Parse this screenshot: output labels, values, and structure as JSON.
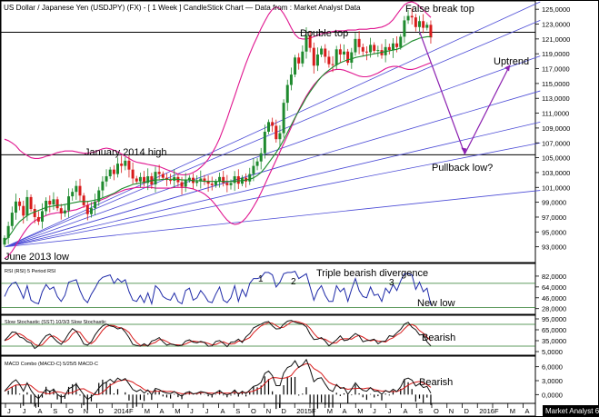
{
  "chart_data": {
    "type": "candlestick",
    "title": "US Dollar / Japanese Yen (USDJPY) (FX) - [ 1 Week ] CandleStick Chart — Data from : Market Analyst Data",
    "watermark": "Market Analyst 6",
    "price_panel": {
      "ylim": [
        91,
        126
      ],
      "y_ticks": [
        "125,0000",
        "123,0000",
        "121,0000",
        "119,0000",
        "117,0000",
        "115,0000",
        "113,0000",
        "111,0000",
        "109,0000",
        "107,0000",
        "105,0000",
        "103,0000",
        "101,0000",
        "99,0000",
        "97,0000",
        "95,0000",
        "93,0000"
      ],
      "horizontal_lines": [
        121.9,
        105.4
      ],
      "annotations": {
        "false_break_top": "False break top",
        "double_top": "Double top",
        "uptrend": "Uptrend",
        "january_2014_high": "January 2014 high",
        "pullback_low": "Pullback low?",
        "june_2013_low": "June 2013 low"
      },
      "close_series": [
        94.2,
        95.8,
        97.6,
        99.1,
        98.5,
        97.2,
        99.7,
        98.1,
        97.0,
        96.4,
        97.8,
        99.2,
        98.7,
        99.4,
        98.2,
        97.5,
        97.9,
        99.8,
        100.4,
        101.2,
        99.9,
        98.6,
        97.4,
        98.2,
        99.1,
        100.6,
        101.8,
        102.5,
        103.4,
        102.8,
        104.2,
        103.9,
        104.6,
        103.4,
        102.2,
        101.8,
        102.4,
        101.6,
        102.5,
        101.4,
        103.1,
        102.8,
        102.3,
        102.0,
        101.9,
        102.4,
        101.7,
        101.1,
        102.0,
        102.3,
        101.6,
        101.8,
        102.2,
        101.9,
        101.5,
        101.3,
        101.8,
        102.4,
        101.6,
        101.3,
        101.6,
        102.5,
        101.5,
        102.3,
        101.8,
        102.8,
        103.9,
        104.5,
        105.6,
        108.5,
        109.8,
        109.3,
        107.5,
        108.3,
        112.4,
        114.8,
        116.2,
        118.5,
        117.7,
        119.3,
        121.5,
        119.8,
        117.4,
        118.9,
        119.7,
        118.6,
        117.6,
        117.5,
        119.6,
        118.9,
        119.3,
        117.8,
        119.2,
        121.0,
        119.9,
        119.3,
        119.2,
        120.2,
        119.4,
        119.5,
        118.8,
        119.9,
        119.5,
        120.4,
        119.9,
        121.3,
        123.5,
        124.1,
        123.9,
        122.6,
        123.4,
        122.5,
        122.9,
        121.2
      ],
      "ma_series": [
        93.8,
        94.3,
        95.0,
        95.8,
        96.4,
        96.8,
        97.2,
        97.5,
        97.7,
        97.9,
        98.1,
        98.3,
        98.4,
        98.5,
        98.6,
        98.6,
        98.7,
        98.8,
        98.9,
        99.0,
        99.1,
        99.1,
        99.1,
        99.2,
        99.3,
        99.4,
        99.6,
        99.8,
        100.0,
        100.2,
        100.5,
        100.8,
        101.0,
        101.2,
        101.4,
        101.5,
        101.6,
        101.7,
        101.8,
        101.9,
        102.0,
        102.0,
        102.1,
        102.1,
        102.1,
        102.1,
        102.1,
        102.0,
        102.0,
        102.0,
        101.9,
        101.9,
        101.9,
        101.8,
        101.8,
        101.8,
        101.8,
        101.8,
        101.8,
        101.8,
        101.8,
        101.8,
        101.9,
        101.9,
        102.0,
        102.1,
        102.3,
        102.6,
        103.0,
        103.6,
        104.3,
        105.0,
        105.7,
        106.5,
        107.4,
        108.4,
        109.4,
        110.4,
        111.3,
        112.2,
        113.1,
        113.9,
        114.6,
        115.3,
        115.9,
        116.4,
        116.8,
        117.2,
        117.5,
        117.8,
        118.0,
        118.2,
        118.3,
        118.5,
        118.6,
        118.7,
        118.8,
        118.9,
        119.0,
        119.1,
        119.2,
        119.3,
        119.4,
        119.5,
        119.6,
        119.8,
        120.1,
        120.4,
        120.7,
        120.9,
        121.1,
        121.2,
        121.3,
        121.3
      ],
      "bb_upper": [
        107.5,
        107.3,
        107.0,
        106.6,
        106.0,
        105.6,
        105.3,
        105.0,
        104.9,
        104.9,
        105.0,
        105.2,
        105.3,
        105.5,
        105.7,
        105.8,
        105.9,
        105.9,
        105.9,
        105.8,
        105.7,
        105.6,
        105.6,
        105.7,
        105.8,
        106.0,
        106.2,
        106.3,
        106.2,
        106.0,
        105.8,
        105.5,
        105.2,
        104.9,
        104.6,
        104.4,
        104.3,
        104.2,
        104.1,
        104.0,
        103.9,
        103.8,
        103.6,
        103.4,
        103.2,
        103.0,
        102.8,
        102.7,
        102.7,
        102.8,
        103.0,
        103.3,
        103.7,
        104.2,
        104.8,
        105.6,
        106.5,
        107.6,
        108.9,
        110.3,
        111.8,
        113.3,
        114.8,
        116.3,
        117.7,
        119.0,
        120.2,
        121.3,
        122.4,
        123.4,
        124.3,
        125.0,
        125.3,
        125.1,
        124.4,
        123.5,
        122.5,
        121.6,
        121.1,
        121.0,
        121.0,
        121.1,
        121.3,
        121.5,
        121.7,
        121.8,
        121.9,
        122.0,
        122.1,
        122.1,
        122.1,
        122.2,
        122.2,
        122.2,
        122.3,
        122.3,
        122.3,
        122.4,
        122.4,
        122.5,
        122.6,
        122.8,
        123.1,
        123.6,
        124.3,
        125.0,
        125.6,
        125.9,
        126.0,
        125.8,
        125.4,
        124.9,
        124.4,
        123.9
      ],
      "bb_lower": [
        91.4,
        91.8,
        92.4,
        93.2,
        94.0,
        94.8,
        95.5,
        96.1,
        96.5,
        96.8,
        97.0,
        97.2,
        97.4,
        97.5,
        97.6,
        97.6,
        97.7,
        97.8,
        97.9,
        98.0,
        98.2,
        98.4,
        98.6,
        98.8,
        99.0,
        99.2,
        99.4,
        99.6,
        99.9,
        100.1,
        100.3,
        100.5,
        100.7,
        100.8,
        100.9,
        101.0,
        101.0,
        101.0,
        101.0,
        101.0,
        100.9,
        100.9,
        100.9,
        100.9,
        100.9,
        101.0,
        101.0,
        101.0,
        101.0,
        100.9,
        100.8,
        100.6,
        100.4,
        100.1,
        99.7,
        99.2,
        98.6,
        97.9,
        97.2,
        96.6,
        96.2,
        96.0,
        96.1,
        96.4,
        96.9,
        97.6,
        98.4,
        99.3,
        100.3,
        101.4,
        102.5,
        103.6,
        104.7,
        105.8,
        106.9,
        108.0,
        109.1,
        110.3,
        111.4,
        112.4,
        113.3,
        114.1,
        114.8,
        115.4,
        115.9,
        116.3,
        116.6,
        116.8,
        116.9,
        116.9,
        116.8,
        116.6,
        116.4,
        116.2,
        116.0,
        115.9,
        115.9,
        116.0,
        116.2,
        116.4,
        116.7,
        117.0,
        117.2,
        117.3,
        117.3,
        117.2,
        117.0,
        116.9,
        116.9,
        117.0,
        117.2,
        117.4,
        117.6,
        117.8
      ],
      "projection": [
        [
          110,
          122.0
        ],
        [
          122,
          105.5
        ],
        [
          134,
          117.5
        ]
      ]
    },
    "rsi_panel": {
      "label": "RSI (RSI) 5 Period RSI",
      "ylim": [
        20,
        100
      ],
      "y_ticks": [
        "82,0000",
        "64,0000",
        "46,0000",
        "28,0000"
      ],
      "horizontal_lines": [
        70,
        30
      ],
      "annotations": {
        "triple": "Triple bearish divergence",
        "new_low": "New low",
        "d1": "1",
        "d2": "2",
        "d3": "3"
      },
      "values": [
        48,
        62,
        70,
        72,
        60,
        45,
        66,
        42,
        38,
        36,
        56,
        68,
        60,
        64,
        48,
        40,
        50,
        72,
        74,
        76,
        58,
        44,
        38,
        52,
        62,
        74,
        80,
        82,
        84,
        70,
        78,
        72,
        76,
        56,
        42,
        40,
        50,
        38,
        54,
        36,
        66,
        60,
        48,
        44,
        42,
        54,
        40,
        36,
        58,
        62,
        42,
        46,
        58,
        50,
        40,
        38,
        52,
        64,
        42,
        38,
        46,
        66,
        40,
        60,
        48,
        70,
        78,
        78,
        80,
        88,
        88,
        84,
        64,
        72,
        86,
        88,
        88,
        90,
        78,
        82,
        86,
        64,
        42,
        58,
        66,
        50,
        40,
        40,
        66,
        56,
        62,
        40,
        60,
        78,
        58,
        48,
        46,
        64,
        50,
        52,
        40,
        62,
        54,
        68,
        58,
        74,
        86,
        86,
        84,
        60,
        72,
        56,
        62,
        34
      ]
    },
    "stoch_panel": {
      "label": "Slow Stochastic (SST) 10/3/3 Slow Stochastic",
      "ylim": [
        0,
        100
      ],
      "y_ticks": [
        "95,0000",
        "65,0000",
        "35,0000",
        "5,0000"
      ],
      "horizontal_lines": [
        80,
        20
      ],
      "annotation": "Bearish"
    },
    "macd_panel": {
      "label": "MACD Combo (MACD-C) 5/25/5 MACD-C",
      "ylim": [
        -1.5,
        7.5
      ],
      "y_ticks": [
        "6,0000",
        "3,0000",
        "0,0000"
      ],
      "annotation": "Bearish"
    },
    "x_axis": {
      "labels": [
        "J",
        "J",
        "A",
        "S",
        "O",
        "N",
        "D",
        "2014",
        "F",
        "M",
        "A",
        "M",
        "J",
        "J",
        "A",
        "S",
        "O",
        "N",
        "D",
        "2015",
        "F",
        "M",
        "A",
        "M",
        "J",
        "J",
        "A",
        "S",
        "O",
        "N",
        "D",
        "2016",
        "F",
        "M",
        "A"
      ]
    }
  }
}
